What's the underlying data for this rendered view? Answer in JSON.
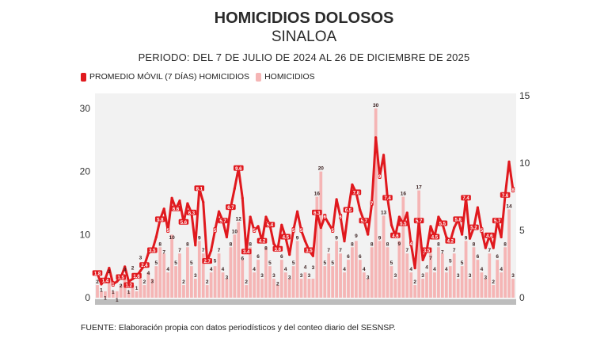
{
  "title": "HOMICIDIOS DOLOSOS",
  "subtitle": "SINALOA",
  "period": "PERIODO: DEL 7 DE JULIO DE 2024 AL 26 DE DICIEMBRE DE 2025",
  "footer": "FUENTE: Elaboración propia con datos periodísticos y del conteo diario del SESNSP.",
  "chart_data": {
    "type": "bar+line",
    "title": "HOMICIDIOS DOLOSOS",
    "legend_position": "top-left",
    "grid": false,
    "colors": {
      "line": "#e0191e",
      "bars": "#f5b5b5",
      "plot_bg": "#f2f2f2"
    },
    "left_axis": {
      "ylim": [
        0,
        32
      ],
      "ticks": [
        "0",
        "10",
        "20",
        "30"
      ]
    },
    "right_axis": {
      "ylim": [
        0,
        15
      ],
      "ticks": [
        "0",
        "5",
        "10",
        "15"
      ]
    },
    "series": [
      {
        "name": "PROMEDIO MÓVIL (7 DÍAS) HOMICIDIOS",
        "type": "line",
        "axis": "right",
        "values": [
          1.8,
          1.0,
          1.4,
          2.2,
          1.0,
          1.2,
          1.5,
          2.3,
          1.2,
          1.4,
          1.6,
          2.0,
          2.4,
          3.3,
          3.5,
          4.5,
          5.8,
          6.6,
          5.0,
          7.4,
          6.6,
          7.2,
          5.6,
          7.0,
          6.3,
          3.9,
          8.1,
          7.1,
          2.7,
          3.5,
          5.0,
          6.4,
          5.7,
          4.5,
          6.7,
          8.1,
          9.6,
          7.4,
          3.4,
          6.0,
          5.0,
          5.3,
          4.2,
          6.0,
          5.4,
          4.0,
          3.6,
          5.4,
          4.5,
          3.2,
          5.0,
          6.4,
          5.0,
          4.2,
          3.5,
          3.1,
          6.3,
          5.2,
          6.0,
          5.5,
          5.0,
          7.3,
          6.0,
          4.2,
          6.5,
          8.4,
          7.8,
          6.5,
          5.7,
          4.7,
          7.0,
          11.9,
          9.0,
          10.6,
          7.4,
          5.4,
          4.6,
          6.0,
          5.5,
          6.3,
          4.0,
          2.2,
          5.7,
          2.8,
          3.5,
          5.3,
          4.5,
          6.0,
          5.5,
          4.5,
          4.2,
          5.2,
          5.8,
          4.7,
          7.4,
          4.4,
          5.2,
          6.7,
          5.0,
          3.7,
          4.6,
          3.7,
          5.7,
          4.5,
          7.6,
          10.1,
          8.0
        ]
      },
      {
        "name": "HOMICIDIOS",
        "type": "bar",
        "axis": "left",
        "values": [
          2,
          1,
          1,
          3,
          1,
          1,
          2,
          3,
          1,
          2,
          1,
          3,
          2,
          4,
          3,
          5,
          8,
          7,
          4,
          10,
          5,
          7,
          2,
          8,
          5,
          3,
          9,
          7,
          2,
          4,
          5,
          7,
          4,
          3,
          8,
          10,
          12,
          6,
          2,
          8,
          4,
          6,
          3,
          8,
          5,
          3,
          2,
          6,
          4,
          3,
          5,
          9,
          3,
          4,
          3,
          3,
          16,
          20,
          5,
          7,
          5,
          9,
          7,
          4,
          6,
          8,
          9,
          6,
          4,
          3,
          8,
          30,
          9,
          13,
          8,
          5,
          3,
          9,
          16,
          7,
          4,
          2,
          17,
          3,
          4,
          7,
          4,
          8,
          7,
          4,
          5,
          7,
          3,
          5,
          9,
          3,
          8,
          6,
          4,
          3,
          7,
          2,
          6,
          4,
          8,
          14,
          3
        ]
      }
    ]
  }
}
